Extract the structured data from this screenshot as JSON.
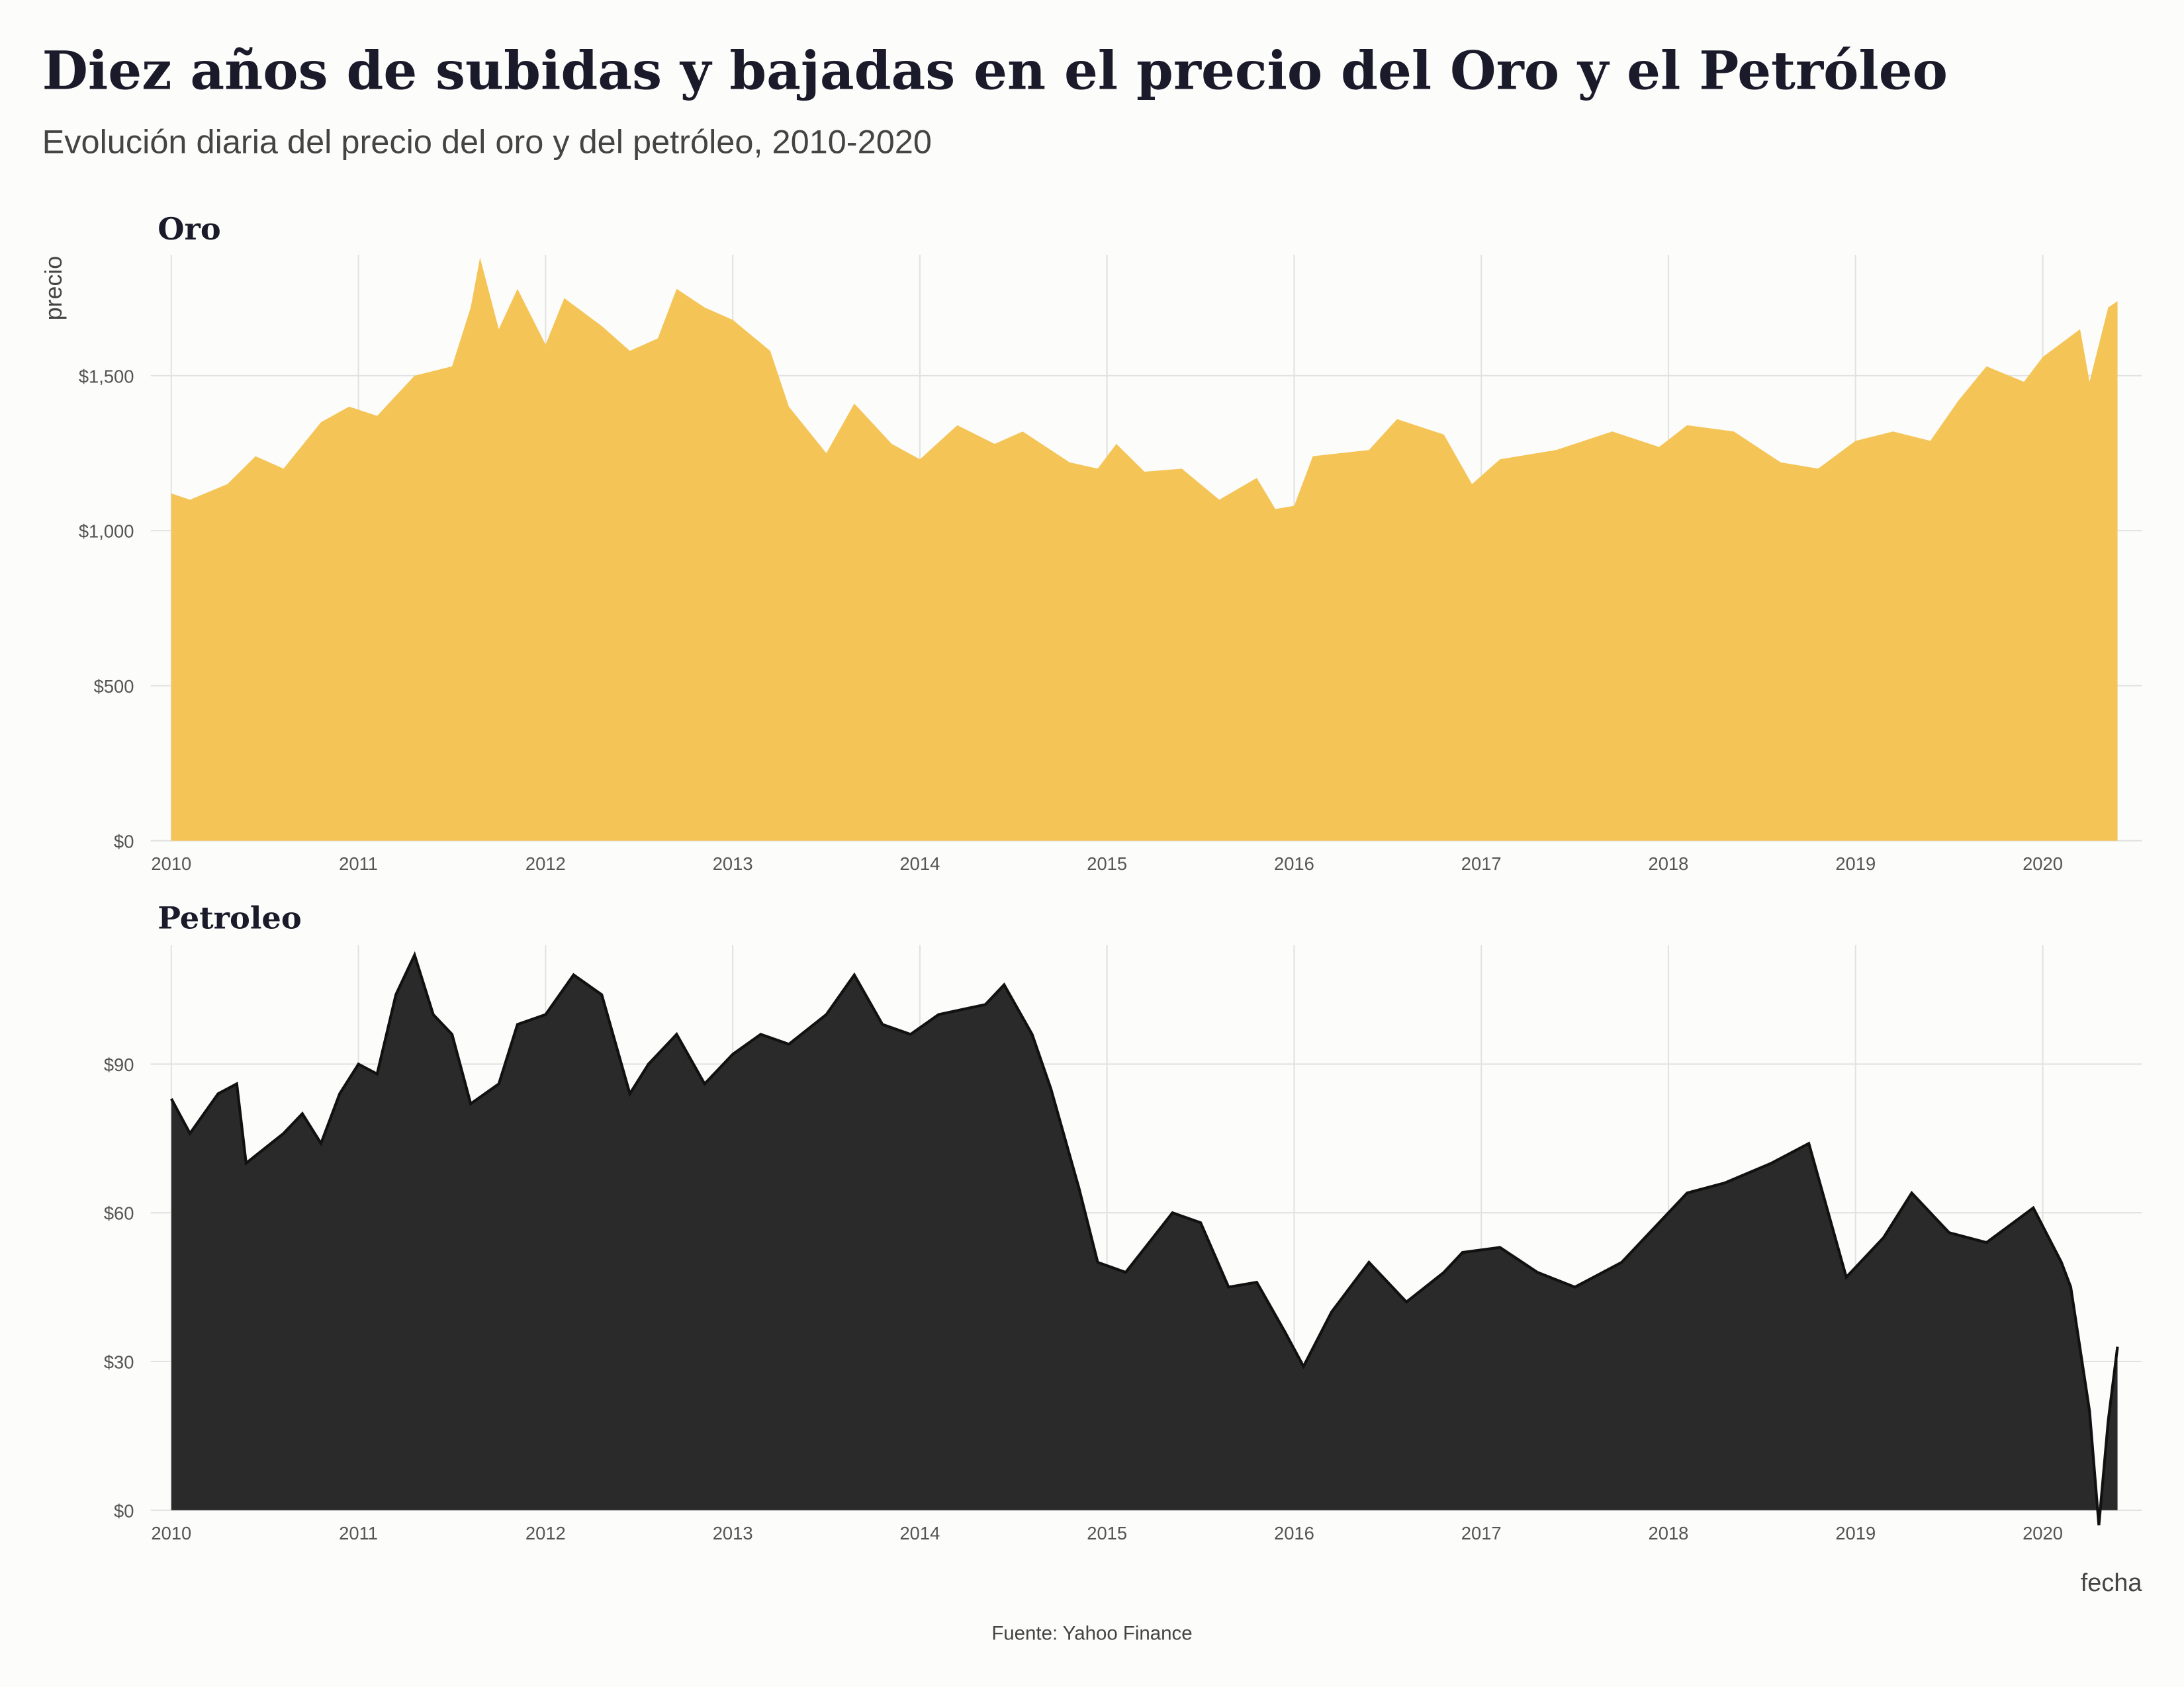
{
  "title": "Diez años de subidas y bajadas en el precio del Oro y el Petróleo",
  "subtitle": "Evolución diaria del precio del oro y del petróleo, 2010-2020",
  "caption": "Fuente: Yahoo Finance",
  "chart_data": [
    {
      "type": "area",
      "title": "Oro",
      "y_label": "precio",
      "color": "#f5c456",
      "grid": true,
      "xlim": [
        2009.89,
        2020.53
      ],
      "xticks": [
        2010,
        2011,
        2012,
        2013,
        2014,
        2015,
        2016,
        2017,
        2018,
        2019,
        2020
      ],
      "ylim": [
        0,
        1890
      ],
      "yticks": [
        {
          "value": 0,
          "label": "$0"
        },
        {
          "value": 500,
          "label": "$500"
        },
        {
          "value": 1000,
          "label": "$1,000"
        },
        {
          "value": 1500,
          "label": "$1,500"
        }
      ],
      "x": [
        2010.0,
        2010.1,
        2010.3,
        2010.45,
        2010.6,
        2010.8,
        2010.95,
        2011.1,
        2011.3,
        2011.5,
        2011.6,
        2011.65,
        2011.75,
        2011.85,
        2012.0,
        2012.1,
        2012.3,
        2012.45,
        2012.6,
        2012.7,
        2012.85,
        2013.0,
        2013.2,
        2013.3,
        2013.5,
        2013.65,
        2013.85,
        2014.0,
        2014.2,
        2014.4,
        2014.55,
        2014.8,
        2014.95,
        2015.05,
        2015.2,
        2015.4,
        2015.6,
        2015.8,
        2015.9,
        2016.0,
        2016.1,
        2016.4,
        2016.55,
        2016.8,
        2016.95,
        2017.1,
        2017.4,
        2017.7,
        2017.95,
        2018.1,
        2018.35,
        2018.6,
        2018.8,
        2019.0,
        2019.2,
        2019.4,
        2019.55,
        2019.7,
        2019.9,
        2020.0,
        2020.2,
        2020.25,
        2020.35,
        2020.4
      ],
      "values": [
        1120,
        1100,
        1150,
        1240,
        1200,
        1350,
        1400,
        1370,
        1500,
        1530,
        1720,
        1880,
        1650,
        1780,
        1600,
        1750,
        1660,
        1580,
        1620,
        1780,
        1720,
        1680,
        1580,
        1400,
        1250,
        1410,
        1280,
        1230,
        1340,
        1280,
        1320,
        1220,
        1200,
        1280,
        1190,
        1200,
        1100,
        1170,
        1070,
        1080,
        1240,
        1260,
        1360,
        1310,
        1150,
        1230,
        1260,
        1320,
        1270,
        1340,
        1320,
        1220,
        1200,
        1290,
        1320,
        1290,
        1420,
        1530,
        1480,
        1560,
        1650,
        1480,
        1720,
        1740
      ]
    },
    {
      "type": "area",
      "title": "Petroleo",
      "x_label": "fecha",
      "color": "#2a2a2a",
      "line_color": "#111111",
      "grid": true,
      "xlim": [
        2009.89,
        2020.53
      ],
      "xticks": [
        2010,
        2011,
        2012,
        2013,
        2014,
        2015,
        2016,
        2017,
        2018,
        2019,
        2020
      ],
      "ylim": [
        0,
        114
      ],
      "yticks": [
        {
          "value": 0,
          "label": "$0"
        },
        {
          "value": 30,
          "label": "$30"
        },
        {
          "value": 60,
          "label": "$60"
        },
        {
          "value": 90,
          "label": "$90"
        }
      ],
      "x": [
        2010.0,
        2010.1,
        2010.25,
        2010.35,
        2010.4,
        2010.6,
        2010.7,
        2010.8,
        2010.9,
        2011.0,
        2011.1,
        2011.2,
        2011.3,
        2011.4,
        2011.5,
        2011.6,
        2011.75,
        2011.85,
        2012.0,
        2012.15,
        2012.3,
        2012.45,
        2012.55,
        2012.7,
        2012.85,
        2013.0,
        2013.15,
        2013.3,
        2013.5,
        2013.65,
        2013.8,
        2013.95,
        2014.1,
        2014.35,
        2014.45,
        2014.6,
        2014.7,
        2014.85,
        2014.95,
        2015.1,
        2015.35,
        2015.5,
        2015.65,
        2015.8,
        2015.95,
        2016.05,
        2016.2,
        2016.4,
        2016.6,
        2016.8,
        2016.9,
        2017.1,
        2017.3,
        2017.5,
        2017.75,
        2017.95,
        2018.1,
        2018.3,
        2018.55,
        2018.75,
        2018.95,
        2019.15,
        2019.3,
        2019.5,
        2019.7,
        2019.95,
        2020.1,
        2020.15,
        2020.25,
        2020.3,
        2020.35,
        2020.4
      ],
      "values": [
        83,
        76,
        84,
        86,
        70,
        76,
        80,
        74,
        84,
        90,
        88,
        104,
        112,
        100,
        96,
        82,
        86,
        98,
        100,
        108,
        104,
        84,
        90,
        96,
        86,
        92,
        96,
        94,
        100,
        108,
        98,
        96,
        100,
        102,
        106,
        96,
        85,
        65,
        50,
        48,
        60,
        58,
        45,
        46,
        36,
        29,
        40,
        50,
        42,
        48,
        52,
        53,
        48,
        45,
        50,
        58,
        64,
        66,
        70,
        74,
        47,
        55,
        64,
        56,
        54,
        61,
        50,
        45,
        20,
        -3,
        18,
        33
      ]
    }
  ]
}
